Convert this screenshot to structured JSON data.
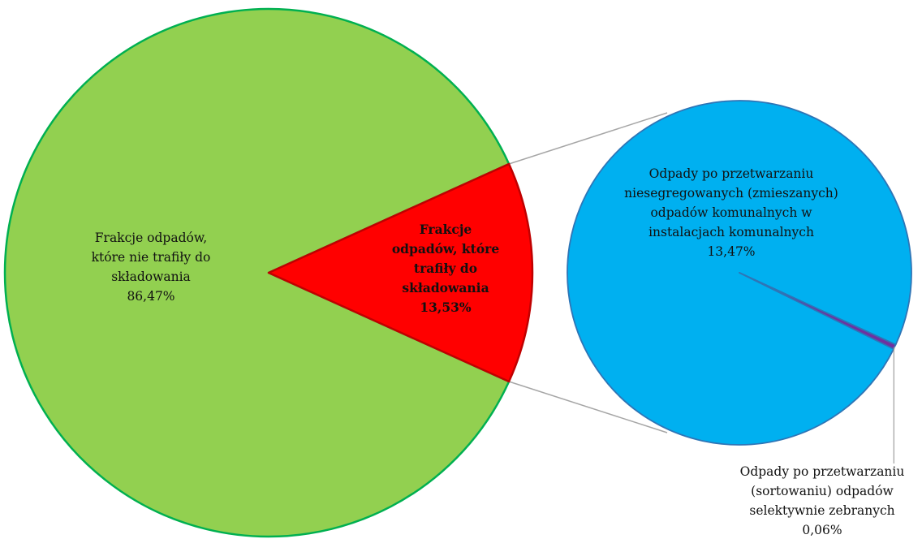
{
  "chart_data": {
    "type": "pie",
    "subtype": "pie-of-pie",
    "primary": {
      "slices": [
        {
          "label_lines": [
            "Frakcje odpadów,",
            "które nie trafiły do",
            "składowania",
            "86,47%"
          ],
          "value": 86.47,
          "color": "#92D050",
          "border": "#00B050"
        },
        {
          "label_lines": [
            "Frakcje",
            "odpadów, które",
            "trafiły do",
            "składowania",
            "13,53%"
          ],
          "value": 13.53,
          "color": "#FF0000",
          "border": "#C00000",
          "bold": true
        }
      ]
    },
    "secondary": {
      "slices": [
        {
          "label_lines": [
            "Odpady po przetwarzaniu",
            "niesegregowanych (zmieszanych)",
            "odpadów komunalnych w",
            "instalacjach komunalnych",
            "13,47%"
          ],
          "value": 13.47,
          "color": "#00B0F0",
          "border": "#2E75B6"
        },
        {
          "label_lines": [
            "Odpady po przetwarzaniu",
            "(sortowaniu) odpadów",
            "selektywnie zebranych",
            "0,06%"
          ],
          "value": 0.06,
          "color": "#7030A0",
          "border": "#2E75B6"
        }
      ]
    },
    "connector_color": "#A6A6A6",
    "legend": "none"
  }
}
